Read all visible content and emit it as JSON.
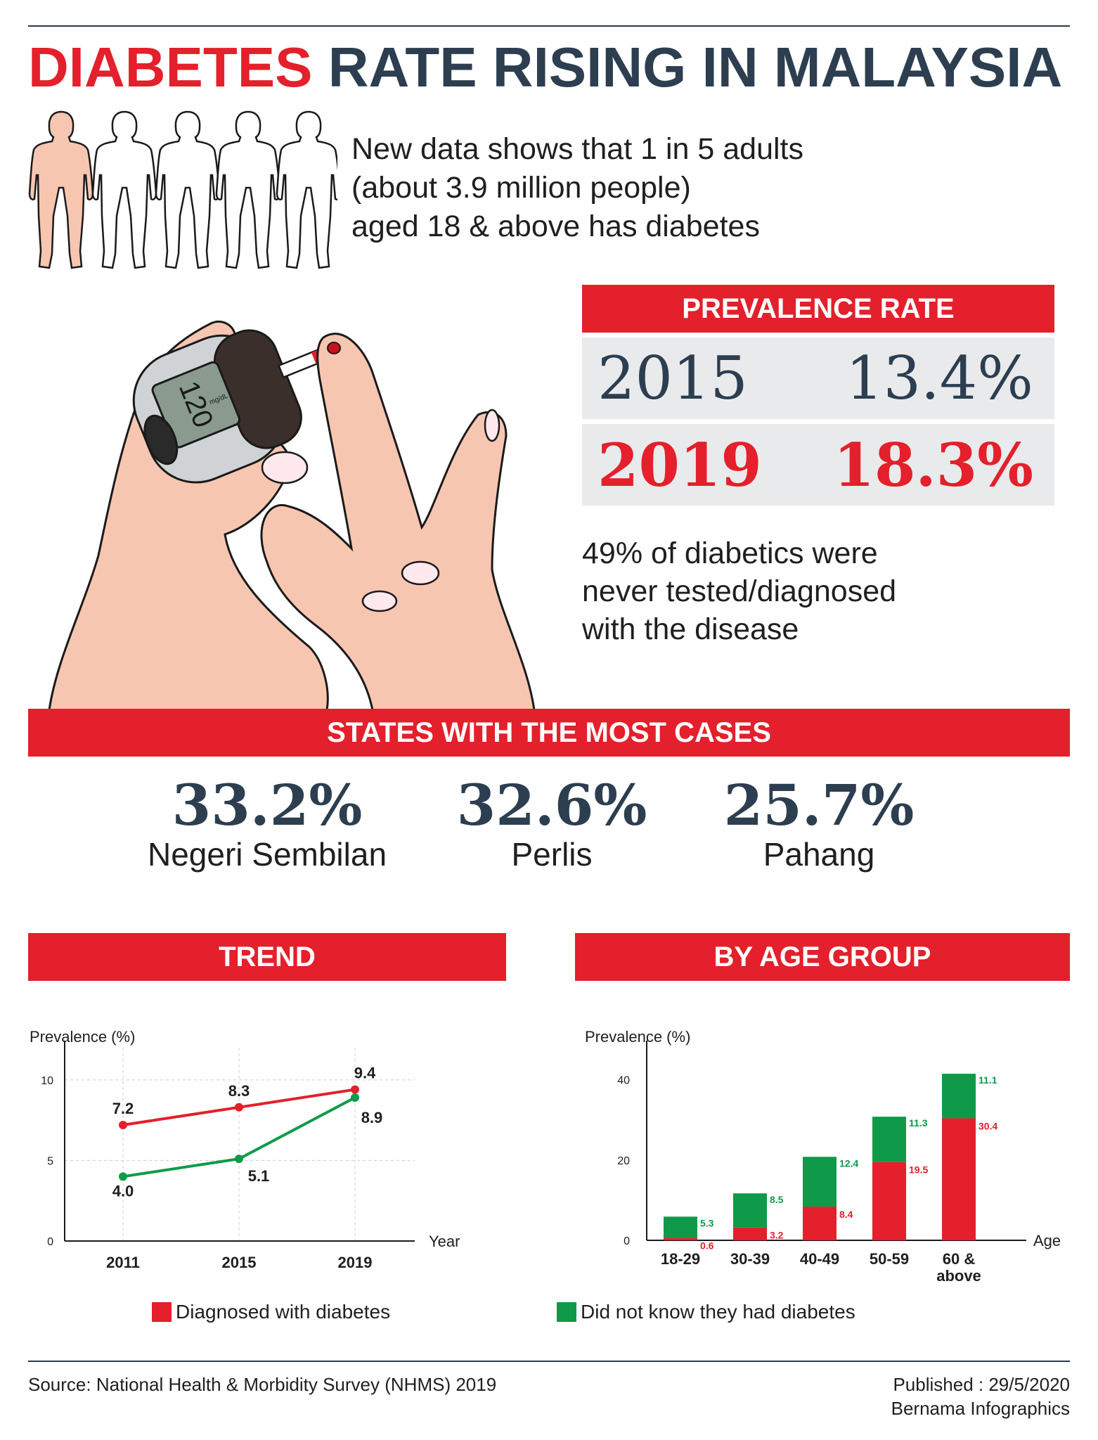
{
  "header": {
    "title_red": "DIABETES",
    "title_navy": "RATE RISING IN MALAYSIA"
  },
  "intro": {
    "lines": [
      "New data shows that 1 in 5 adults",
      "(about 3.9 million people)",
      "aged 18 & above has diabetes"
    ]
  },
  "meter_reading": {
    "value": "120",
    "unit": "mg/dL"
  },
  "prevalence": {
    "banner": "PREVALENCE RATE",
    "rows": [
      {
        "year": "2015",
        "rate": "13.4%"
      },
      {
        "year": "2019",
        "rate": "18.3%"
      }
    ]
  },
  "note": {
    "lines": [
      "49% of diabetics were",
      "never tested/diagnosed",
      "with the disease"
    ]
  },
  "states": {
    "banner": "STATES WITH THE MOST CASES",
    "items": [
      {
        "pct": "33.2%",
        "name": "Negeri Sembilan"
      },
      {
        "pct": "32.6%",
        "name": "Perlis"
      },
      {
        "pct": "25.7%",
        "name": "Pahang"
      }
    ]
  },
  "trend_banner": "TREND",
  "age_banner": "BY AGE GROUP",
  "legend": {
    "diagnosed": "Diagnosed with diabetes",
    "unknown": "Did not know they had diabetes"
  },
  "colors": {
    "red": "#e3202b",
    "green": "#0e9a48",
    "navy": "#2c3e50",
    "grey": "#e9eaec"
  },
  "chart_data": [
    {
      "type": "line",
      "title": "",
      "ylabel": "Prevalence (%)",
      "xlabel": "Year",
      "x": [
        "2011",
        "2015",
        "2019"
      ],
      "ylim": [
        0,
        12
      ],
      "yticks": [
        0,
        5,
        10
      ],
      "grid": true,
      "series": [
        {
          "name": "Diagnosed with diabetes",
          "color": "#e3202b",
          "values": [
            7.2,
            8.3,
            9.4
          ]
        },
        {
          "name": "Did not know they had diabetes",
          "color": "#0e9a48",
          "values": [
            4.0,
            5.1,
            8.9
          ]
        }
      ]
    },
    {
      "type": "bar",
      "stacked": true,
      "title": "",
      "ylabel": "Prevalence (%)",
      "xlabel": "Age",
      "categories": [
        "18-29",
        "30-39",
        "40-49",
        "50-59",
        "60 & above"
      ],
      "ylim": [
        0,
        48
      ],
      "yticks": [
        0,
        20,
        40
      ],
      "series": [
        {
          "name": "Diagnosed with diabetes",
          "color": "#e3202b",
          "values": [
            0.6,
            3.2,
            8.4,
            19.5,
            30.4
          ]
        },
        {
          "name": "Did not know they had diabetes",
          "color": "#0e9a48",
          "values": [
            5.3,
            8.5,
            12.4,
            11.3,
            11.1
          ]
        }
      ]
    }
  ],
  "footer": {
    "source": "Source: National Health & Morbidity Survey (NHMS) 2019",
    "published": "Published : 29/5/2020",
    "credit": "Bernama Infographics"
  }
}
